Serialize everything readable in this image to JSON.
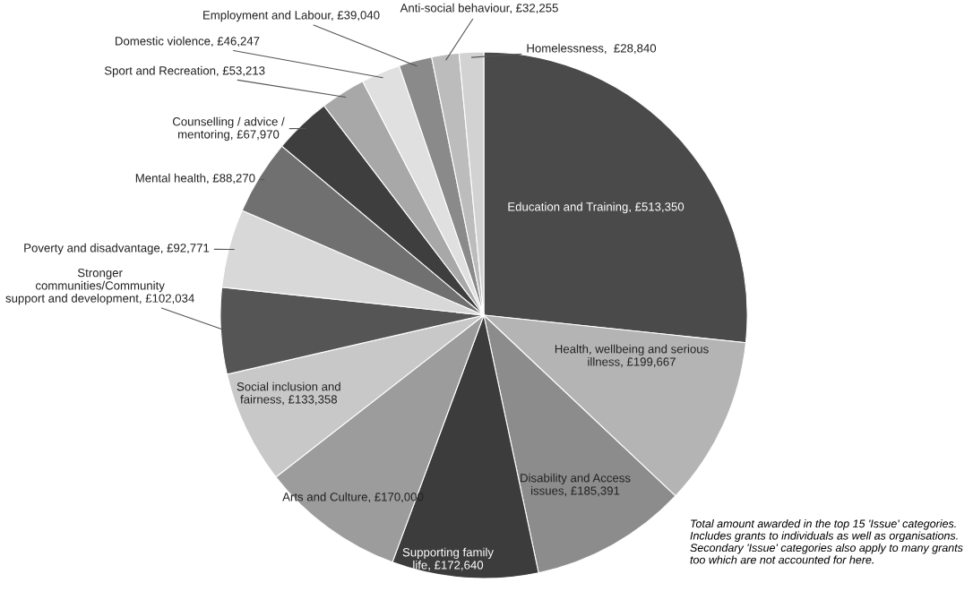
{
  "chart_data": {
    "type": "pie",
    "categories": [
      "Education and Training",
      "Health, wellbeing and serious\nillness",
      "Disability and Access\nissues",
      "Supporting family\nlife",
      "Arts and Culture",
      "Social inclusion and\nfairness",
      "Stronger\ncommunities/Community\nsupport and development",
      "Poverty and disadvantage",
      "Mental health",
      "Counselling / advice /\nmentoring",
      "Sport and Recreation",
      "Domestic violence",
      "Employment and Labour",
      "Anti-social behaviour",
      "Homelessness"
    ],
    "values": [
      513350,
      199667,
      185391,
      172640,
      170000,
      133358,
      102034,
      92771,
      88270,
      67970,
      53213,
      46247,
      39040,
      32255,
      28840
    ],
    "value_labels": [
      "£513,350",
      "£199,667",
      "£185,391",
      "£172,640",
      "£170,000",
      "£133,358",
      "£102,034",
      "£92,771",
      "£88,270",
      "£67,970",
      "£53,213",
      "£46,247",
      "£39,040",
      "£32,255",
      "£28,840"
    ],
    "colors": [
      "#4a4a4a",
      "#b4b4b4",
      "#8c8c8c",
      "#3c3c3c",
      "#9c9c9c",
      "#c8c8c8",
      "#555555",
      "#d8d8d8",
      "#707070",
      "#3e3e3e",
      "#a8a8a8",
      "#e0e0e0",
      "#8a8a8a",
      "#bcbcbc",
      "#d2d2d2"
    ],
    "annotations": [
      "Total amount awarded in the top 15 'Issue' categories. Includes grants to individuals as well as organisations. Secondary 'Issue' categories also apply to many grants too which are not accounted for here."
    ]
  }
}
